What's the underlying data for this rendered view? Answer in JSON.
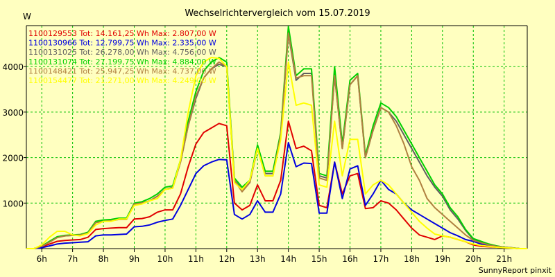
{
  "chart_data": {
    "type": "line",
    "title": "Wechselrichtervergleich vom 15.07.2019",
    "ylabel": "W",
    "footer": "SunnyReport pinxit",
    "x_ticks": [
      "6h",
      "7h",
      "8h",
      "9h",
      "10h",
      "11h",
      "12h",
      "13h",
      "14h",
      "15h",
      "16h",
      "17h",
      "18h",
      "19h",
      "20h",
      "21h"
    ],
    "y_ticks": [
      1000,
      2000,
      3000,
      4000
    ],
    "xlim": [
      5.5,
      21.75
    ],
    "ylim": [
      0,
      4900
    ],
    "grid": true,
    "legend_position": "top-left",
    "x": [
      5.5,
      5.75,
      6.0,
      6.25,
      6.5,
      6.75,
      7.0,
      7.25,
      7.5,
      7.75,
      8.0,
      8.25,
      8.5,
      8.75,
      9.0,
      9.25,
      9.5,
      9.75,
      10.0,
      10.25,
      10.5,
      10.75,
      11.0,
      11.25,
      11.5,
      11.75,
      12.0,
      12.25,
      12.5,
      12.75,
      13.0,
      13.25,
      13.5,
      13.75,
      14.0,
      14.25,
      14.5,
      14.75,
      15.0,
      15.25,
      15.5,
      15.75,
      16.0,
      16.25,
      16.5,
      16.75,
      17.0,
      17.25,
      17.5,
      17.75,
      18.0,
      18.25,
      18.5,
      18.75,
      19.0,
      19.25,
      19.5,
      19.75,
      20.0,
      20.25,
      20.5,
      20.75,
      21.0,
      21.25,
      21.5,
      21.75
    ],
    "series": [
      {
        "name": "1100129553 Tot: 14.161,25 Wh Max: 2.807,00 W",
        "color": "#E00000",
        "values": [
          0,
          0,
          40,
          100,
          160,
          180,
          190,
          200,
          250,
          420,
          440,
          450,
          460,
          460,
          650,
          660,
          700,
          800,
          850,
          850,
          1200,
          1800,
          2300,
          2550,
          2650,
          2750,
          2700,
          1000,
          850,
          950,
          1400,
          1050,
          1050,
          1500,
          2800,
          2200,
          2250,
          2150,
          950,
          900,
          1900,
          1200,
          1600,
          1650,
          880,
          900,
          1050,
          1000,
          850,
          650,
          450,
          300,
          250,
          200,
          280,
          250,
          200,
          150,
          80,
          50,
          40,
          30,
          20,
          10,
          0,
          0
        ]
      },
      {
        "name": "1100130966 Tot: 12.799,75 Wh Max: 2.335,00 W",
        "color": "#0000E0",
        "values": [
          0,
          0,
          20,
          60,
          100,
          120,
          130,
          140,
          150,
          280,
          300,
          300,
          310,
          320,
          480,
          490,
          520,
          580,
          620,
          650,
          950,
          1300,
          1650,
          1820,
          1900,
          1960,
          1950,
          750,
          650,
          750,
          1050,
          800,
          800,
          1200,
          2330,
          1800,
          1880,
          1870,
          780,
          780,
          1900,
          1100,
          1750,
          1820,
          950,
          1200,
          1500,
          1300,
          1200,
          1000,
          850,
          750,
          650,
          550,
          450,
          350,
          280,
          200,
          160,
          100,
          70,
          50,
          30,
          20,
          0,
          0
        ]
      },
      {
        "name": "1100131025 Tot: 26.278,00 Wh Max: 4.756,00 W",
        "color": "#606060",
        "values": [
          0,
          0,
          50,
          150,
          250,
          280,
          290,
          300,
          350,
          580,
          600,
          620,
          650,
          650,
          980,
          1000,
          1050,
          1150,
          1300,
          1350,
          1900,
          2700,
          3300,
          3750,
          3950,
          4050,
          4000,
          1500,
          1300,
          1450,
          2200,
          1650,
          1650,
          2500,
          4720,
          3700,
          3850,
          3850,
          1600,
          1550,
          3800,
          2200,
          3600,
          3800,
          2000,
          2600,
          3100,
          3000,
          2800,
          2500,
          2200,
          1900,
          1600,
          1350,
          1150,
          850,
          650,
          400,
          200,
          150,
          100,
          60,
          30,
          15,
          0,
          0
        ]
      },
      {
        "name": "1100131074 Tot: 27.199,75 Wh Max: 4.884,00 W",
        "color": "#00D000",
        "values": [
          0,
          0,
          55,
          160,
          260,
          290,
          300,
          310,
          360,
          600,
          630,
          640,
          670,
          670,
          1000,
          1030,
          1100,
          1200,
          1350,
          1380,
          1950,
          2800,
          3450,
          3900,
          4100,
          4200,
          4100,
          1550,
          1350,
          1500,
          2280,
          1700,
          1700,
          2550,
          4884,
          3800,
          3950,
          3950,
          1650,
          1600,
          4000,
          2300,
          3700,
          3850,
          2050,
          2700,
          3200,
          3100,
          2900,
          2600,
          2300,
          2000,
          1700,
          1400,
          1200,
          900,
          700,
          420,
          220,
          160,
          100,
          60,
          30,
          15,
          0,
          0
        ]
      },
      {
        "name": "1100148421 Tot: 25.947,25 Wh Max: 4.737,00 W",
        "color": "#B08040",
        "values": [
          0,
          0,
          50,
          140,
          240,
          280,
          290,
          300,
          340,
          570,
          600,
          610,
          640,
          640,
          980,
          1000,
          1050,
          1150,
          1300,
          1330,
          1900,
          2700,
          3350,
          3750,
          3950,
          4100,
          4000,
          1500,
          1250,
          1450,
          2200,
          1600,
          1600,
          2500,
          4737,
          3750,
          3800,
          3800,
          1550,
          1500,
          3800,
          2200,
          3600,
          3800,
          2000,
          2600,
          3100,
          3000,
          2700,
          2300,
          1800,
          1500,
          1100,
          900,
          750,
          600,
          450,
          300,
          180,
          130,
          80,
          50,
          30,
          15,
          0,
          0
        ]
      },
      {
        "name": "1100154477 Tot: 21.271,00 Wh Max: 4.249,00 W",
        "color": "#FFFF00",
        "values": [
          0,
          0,
          80,
          250,
          380,
          380,
          300,
          280,
          330,
          520,
          600,
          600,
          650,
          650,
          950,
          980,
          1050,
          1100,
          1300,
          1330,
          1950,
          3000,
          3800,
          4100,
          4200,
          4180,
          4000,
          1450,
          1300,
          1500,
          2200,
          1600,
          1600,
          2400,
          4100,
          3150,
          3200,
          3150,
          1400,
          1350,
          2800,
          1600,
          2400,
          2400,
          1200,
          1400,
          1500,
          1400,
          1200,
          1000,
          800,
          600,
          450,
          320,
          280,
          250,
          200,
          150,
          100,
          70,
          50,
          30,
          20,
          10,
          0,
          0
        ]
      }
    ]
  }
}
